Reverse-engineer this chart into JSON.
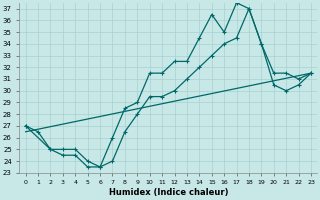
{
  "xlabel": "Humidex (Indice chaleur)",
  "xlim": [
    -0.5,
    23.5
  ],
  "ylim": [
    23,
    37.5
  ],
  "yticks": [
    23,
    24,
    25,
    26,
    27,
    28,
    29,
    30,
    31,
    32,
    33,
    34,
    35,
    36,
    37
  ],
  "xticks": [
    0,
    1,
    2,
    3,
    4,
    5,
    6,
    7,
    8,
    9,
    10,
    11,
    12,
    13,
    14,
    15,
    16,
    17,
    18,
    19,
    20,
    21,
    22,
    23
  ],
  "line_color": "#006868",
  "bg_color": "#c8e8e8",
  "grid_color": "#a8d0d0",
  "line1_x": [
    0,
    2,
    3,
    4,
    5,
    6,
    7,
    8,
    9,
    10,
    11,
    12,
    13,
    14,
    15,
    16,
    17,
    18,
    19,
    20,
    21,
    22,
    23
  ],
  "line1_y": [
    27,
    25,
    25,
    25,
    24,
    23.5,
    24,
    26.5,
    28,
    29.5,
    29.5,
    30,
    31,
    32,
    33,
    34,
    34.5,
    37,
    34,
    30.5,
    30,
    30.5,
    31.5
  ],
  "line2_x": [
    0,
    1,
    2,
    3,
    4,
    5,
    6,
    7,
    8,
    9,
    10,
    11,
    12,
    13,
    14,
    15,
    16,
    17,
    18,
    19,
    20,
    21,
    22,
    23
  ],
  "line2_y": [
    27,
    26.5,
    25,
    24.5,
    24.5,
    23.5,
    23.5,
    26,
    28.5,
    29,
    31.5,
    31.5,
    32.5,
    32.5,
    34.5,
    36.5,
    35,
    37.5,
    37,
    34,
    31.5,
    31.5,
    31,
    31.5
  ],
  "line3_x": [
    0,
    23
  ],
  "line3_y": [
    26.5,
    31.5
  ]
}
